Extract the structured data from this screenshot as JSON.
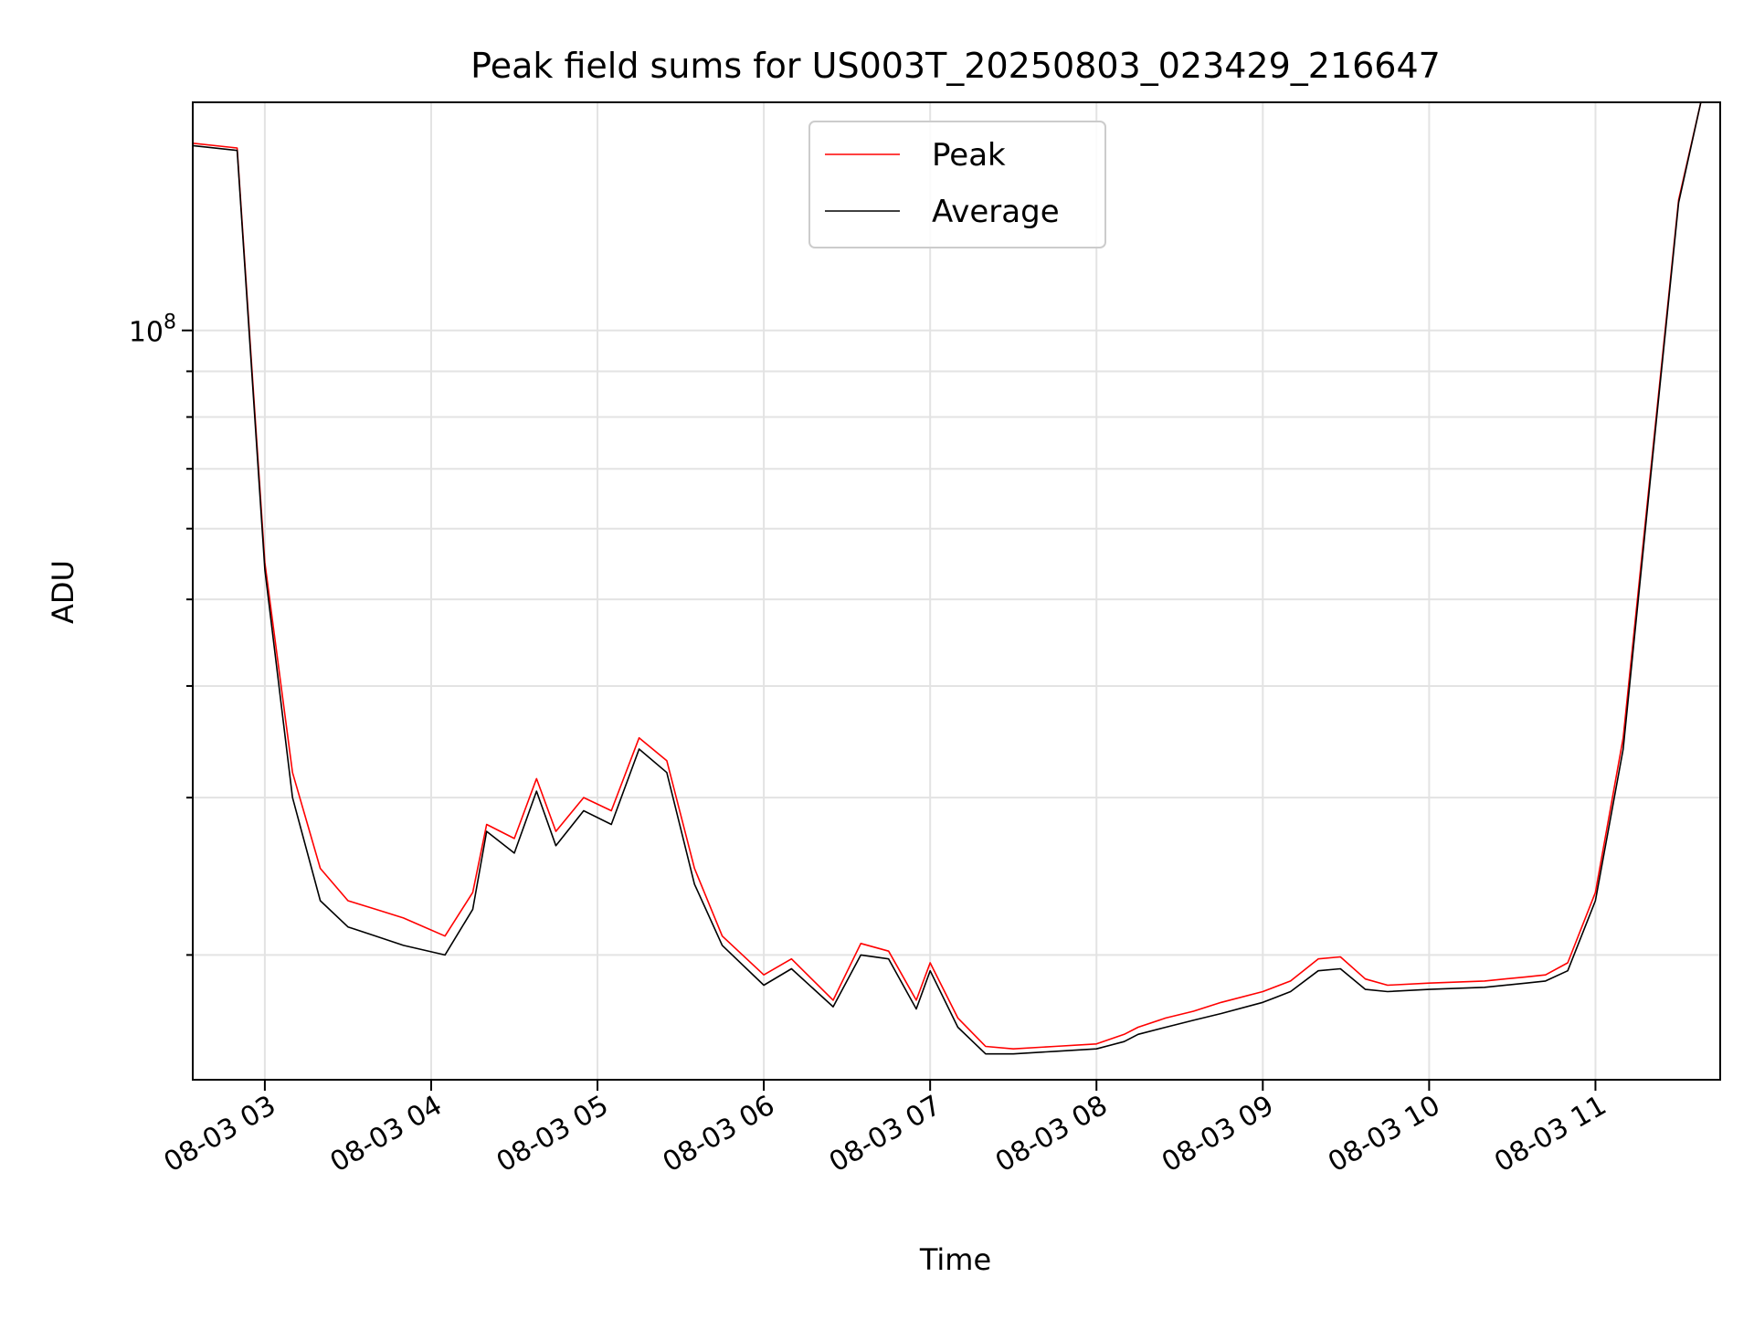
{
  "chart_data": {
    "type": "line",
    "title": "Peak field sums for US003T_20250803_023429_216647",
    "xlabel": "Time",
    "ylabel": "ADU",
    "y_scale": "log",
    "ylim": [
      14500000,
      180000000
    ],
    "xlim": [
      "2025-08-03 02:34",
      "2025-08-03 11:45"
    ],
    "grid": true,
    "legend_position": "upper-center",
    "x_ticks": [
      "08-03 03",
      "08-03 04",
      "08-03 05",
      "08-03 06",
      "08-03 07",
      "08-03 08",
      "08-03 09",
      "08-03 10",
      "08-03 11"
    ],
    "y_major_tick_label": "10^8",
    "y_ticks_major": [
      100000000
    ],
    "y_ticks_minor": [
      20000000,
      30000000,
      40000000,
      50000000,
      60000000,
      70000000,
      80000000,
      90000000
    ],
    "series": [
      {
        "name": "Peak",
        "color": "#ff0000",
        "line_width": 1,
        "x": [
          "2025-08-03 02:34",
          "2025-08-03 02:50",
          "2025-08-03 03:00",
          "2025-08-03 03:10",
          "2025-08-03 03:20",
          "2025-08-03 03:30",
          "2025-08-03 03:40",
          "2025-08-03 03:50",
          "2025-08-03 04:05",
          "2025-08-03 04:15",
          "2025-08-03 04:20",
          "2025-08-03 04:30",
          "2025-08-03 04:38",
          "2025-08-03 04:45",
          "2025-08-03 04:55",
          "2025-08-03 05:05",
          "2025-08-03 05:15",
          "2025-08-03 05:25",
          "2025-08-03 05:35",
          "2025-08-03 05:45",
          "2025-08-03 06:00",
          "2025-08-03 06:10",
          "2025-08-03 06:25",
          "2025-08-03 06:35",
          "2025-08-03 06:45",
          "2025-08-03 06:55",
          "2025-08-03 07:00",
          "2025-08-03 07:10",
          "2025-08-03 07:20",
          "2025-08-03 07:30",
          "2025-08-03 07:45",
          "2025-08-03 08:00",
          "2025-08-03 08:10",
          "2025-08-03 08:15",
          "2025-08-03 08:25",
          "2025-08-03 08:35",
          "2025-08-03 08:45",
          "2025-08-03 09:00",
          "2025-08-03 09:10",
          "2025-08-03 09:20",
          "2025-08-03 09:28",
          "2025-08-03 09:37",
          "2025-08-03 09:45",
          "2025-08-03 10:00",
          "2025-08-03 10:20",
          "2025-08-03 10:35",
          "2025-08-03 10:42",
          "2025-08-03 10:50",
          "2025-08-03 11:00",
          "2025-08-03 11:10",
          "2025-08-03 11:20",
          "2025-08-03 11:30",
          "2025-08-03 11:38"
        ],
        "values": [
          162000000,
          160000000,
          55000000,
          32000000,
          25000000,
          23000000,
          22500000,
          22000000,
          21000000,
          23500000,
          28000000,
          27000000,
          31500000,
          27500000,
          30000000,
          29000000,
          35000000,
          33000000,
          25000000,
          21000000,
          19000000,
          19800000,
          17800000,
          20600000,
          20200000,
          17800000,
          19600000,
          17000000,
          15800000,
          15700000,
          15800000,
          15900000,
          16300000,
          16600000,
          17000000,
          17300000,
          17700000,
          18200000,
          18700000,
          19800000,
          19900000,
          18800000,
          18500000,
          18600000,
          18700000,
          18900000,
          19000000,
          19600000,
          23500000,
          35000000,
          70000000,
          140000000,
          180000000
        ]
      },
      {
        "name": "Average",
        "color": "#000000",
        "line_width": 1,
        "x": [
          "2025-08-03 02:34",
          "2025-08-03 02:50",
          "2025-08-03 03:00",
          "2025-08-03 03:10",
          "2025-08-03 03:20",
          "2025-08-03 03:30",
          "2025-08-03 03:40",
          "2025-08-03 03:50",
          "2025-08-03 04:05",
          "2025-08-03 04:15",
          "2025-08-03 04:20",
          "2025-08-03 04:30",
          "2025-08-03 04:38",
          "2025-08-03 04:45",
          "2025-08-03 04:55",
          "2025-08-03 05:05",
          "2025-08-03 05:15",
          "2025-08-03 05:25",
          "2025-08-03 05:35",
          "2025-08-03 05:45",
          "2025-08-03 06:00",
          "2025-08-03 06:10",
          "2025-08-03 06:25",
          "2025-08-03 06:35",
          "2025-08-03 06:45",
          "2025-08-03 06:55",
          "2025-08-03 07:00",
          "2025-08-03 07:10",
          "2025-08-03 07:20",
          "2025-08-03 07:30",
          "2025-08-03 07:45",
          "2025-08-03 08:00",
          "2025-08-03 08:10",
          "2025-08-03 08:15",
          "2025-08-03 08:25",
          "2025-08-03 08:35",
          "2025-08-03 08:45",
          "2025-08-03 09:00",
          "2025-08-03 09:10",
          "2025-08-03 09:20",
          "2025-08-03 09:28",
          "2025-08-03 09:37",
          "2025-08-03 09:45",
          "2025-08-03 10:00",
          "2025-08-03 10:20",
          "2025-08-03 10:35",
          "2025-08-03 10:42",
          "2025-08-03 10:50",
          "2025-08-03 11:00",
          "2025-08-03 11:10",
          "2025-08-03 11:20",
          "2025-08-03 11:30",
          "2025-08-03 11:38"
        ],
        "values": [
          161000000,
          159000000,
          54000000,
          30000000,
          23000000,
          21500000,
          21000000,
          20500000,
          20000000,
          22500000,
          27500000,
          26000000,
          30500000,
          26500000,
          29000000,
          28000000,
          34000000,
          32000000,
          24000000,
          20500000,
          18500000,
          19300000,
          17500000,
          20000000,
          19800000,
          17400000,
          19200000,
          16600000,
          15500000,
          15500000,
          15600000,
          15700000,
          16000000,
          16300000,
          16600000,
          16900000,
          17200000,
          17700000,
          18200000,
          19200000,
          19300000,
          18300000,
          18200000,
          18300000,
          18400000,
          18600000,
          18700000,
          19200000,
          23000000,
          34000000,
          69000000,
          139000000,
          180000000
        ]
      }
    ]
  }
}
